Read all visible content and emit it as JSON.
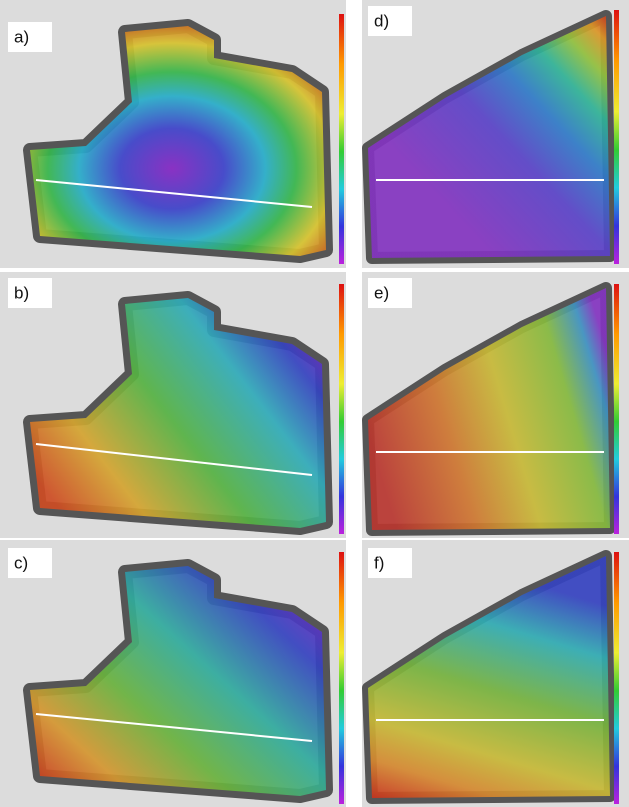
{
  "panels": [
    {
      "label": "a)"
    },
    {
      "label": "b)"
    },
    {
      "label": "c)"
    },
    {
      "label": "d)"
    },
    {
      "label": "e)"
    },
    {
      "label": "f)"
    }
  ]
}
